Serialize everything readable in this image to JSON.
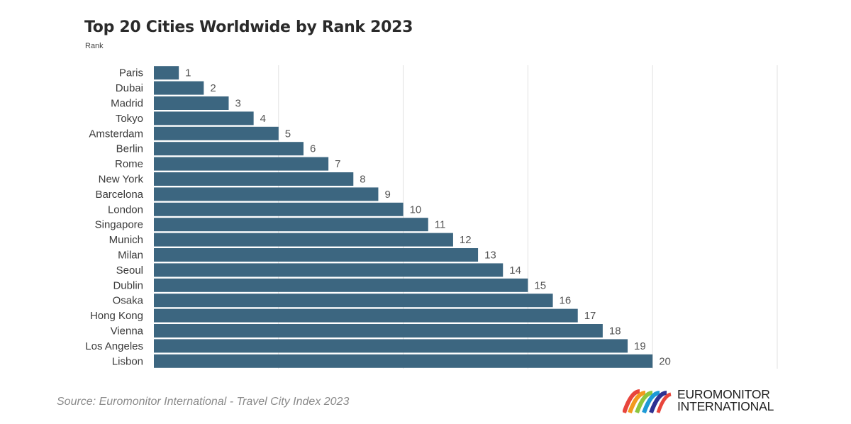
{
  "chart_data": {
    "type": "bar",
    "orientation": "horizontal",
    "title": "Top 20 Cities Worldwide by Rank 2023",
    "subtitle": "Rank",
    "categories": [
      "Paris",
      "Dubai",
      "Madrid",
      "Tokyo",
      "Amsterdam",
      "Berlin",
      "Rome",
      "New York",
      "Barcelona",
      "London",
      "Singapore",
      "Munich",
      "Milan",
      "Seoul",
      "Dublin",
      "Osaka",
      "Hong Kong",
      "Vienna",
      "Los Angeles",
      "Lisbon"
    ],
    "values": [
      1,
      2,
      3,
      4,
      5,
      6,
      7,
      8,
      9,
      10,
      11,
      12,
      13,
      14,
      15,
      16,
      17,
      18,
      19,
      20
    ],
    "xlim": [
      0,
      25
    ],
    "grid": true,
    "bar_color": "#3c6680",
    "gridline_color": "#e2e2e2"
  },
  "source": "Source: Euromonitor International - Travel City Index 2023",
  "logo": {
    "line1": "EUROMONITOR",
    "line2": "INTERNATIONAL",
    "icon": "euromonitor-arcs-logo"
  }
}
